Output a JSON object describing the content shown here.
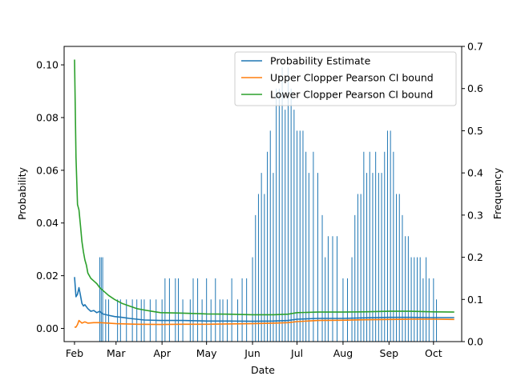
{
  "chart_data": {
    "type": "line",
    "xlabel": "Date",
    "ylabel_left": "Probability",
    "ylabel_right": "Frequency",
    "x_range": [
      "2023-01-25",
      "2023-10-20"
    ],
    "x_ticks": [
      {
        "label": "Feb",
        "date": "2023-02-01"
      },
      {
        "label": "Mar",
        "date": "2023-03-01"
      },
      {
        "label": "Apr",
        "date": "2023-04-01"
      },
      {
        "label": "May",
        "date": "2023-05-01"
      },
      {
        "label": "Jun",
        "date": "2023-06-01"
      },
      {
        "label": "Jul",
        "date": "2023-07-01"
      },
      {
        "label": "Aug",
        "date": "2023-08-01"
      },
      {
        "label": "Sep",
        "date": "2023-09-01"
      },
      {
        "label": "Oct",
        "date": "2023-10-01"
      }
    ],
    "ylim_left": [
      -0.005,
      0.107
    ],
    "y_ticks_left": [
      "0.00",
      "0.02",
      "0.04",
      "0.06",
      "0.08",
      "0.10"
    ],
    "ylim_right": [
      0.0,
      0.7
    ],
    "y_ticks_right": [
      "0.0",
      "0.1",
      "0.2",
      "0.3",
      "0.4",
      "0.5",
      "0.6",
      "0.7"
    ],
    "legend_position": "top-right",
    "series": [
      {
        "name": "Probability Estimate",
        "color": "#1f77b4",
        "points": [
          [
            "2023-02-01",
            0.0195
          ],
          [
            "2023-02-02",
            0.012
          ],
          [
            "2023-02-03",
            0.013
          ],
          [
            "2023-02-04",
            0.0155
          ],
          [
            "2023-02-05",
            0.0125
          ],
          [
            "2023-02-06",
            0.0095
          ],
          [
            "2023-02-07",
            0.0085
          ],
          [
            "2023-02-08",
            0.009
          ],
          [
            "2023-02-10",
            0.0075
          ],
          [
            "2023-02-12",
            0.0065
          ],
          [
            "2023-02-14",
            0.0068
          ],
          [
            "2023-02-16",
            0.006
          ],
          [
            "2023-02-18",
            0.0065
          ],
          [
            "2023-02-20",
            0.0055
          ],
          [
            "2023-02-24",
            0.005
          ],
          [
            "2023-02-28",
            0.0045
          ],
          [
            "2023-03-05",
            0.0042
          ],
          [
            "2023-03-10",
            0.0038
          ],
          [
            "2023-03-15",
            0.0035
          ],
          [
            "2023-03-20",
            0.0032
          ],
          [
            "2023-03-31",
            0.003
          ],
          [
            "2023-04-15",
            0.003
          ],
          [
            "2023-05-01",
            0.0028
          ],
          [
            "2023-05-15",
            0.0028
          ],
          [
            "2023-06-01",
            0.0027
          ],
          [
            "2023-06-15",
            0.0028
          ],
          [
            "2023-06-25",
            0.003
          ],
          [
            "2023-07-01",
            0.0035
          ],
          [
            "2023-07-15",
            0.0038
          ],
          [
            "2023-08-01",
            0.0038
          ],
          [
            "2023-08-15",
            0.004
          ],
          [
            "2023-09-01",
            0.0042
          ],
          [
            "2023-09-15",
            0.0042
          ],
          [
            "2023-10-01",
            0.0041
          ],
          [
            "2023-10-15",
            0.0041
          ]
        ]
      },
      {
        "name": "Upper Clopper Pearson CI bound",
        "color": "#ff7f0e",
        "points": [
          [
            "2023-02-01",
            0.0005
          ],
          [
            "2023-02-02",
            0.0005
          ],
          [
            "2023-02-03",
            0.0015
          ],
          [
            "2023-02-04",
            0.003
          ],
          [
            "2023-02-05",
            0.0025
          ],
          [
            "2023-02-06",
            0.002
          ],
          [
            "2023-02-08",
            0.0025
          ],
          [
            "2023-02-10",
            0.002
          ],
          [
            "2023-02-14",
            0.0022
          ],
          [
            "2023-02-18",
            0.0022
          ],
          [
            "2023-02-24",
            0.002
          ],
          [
            "2023-03-01",
            0.0018
          ],
          [
            "2023-03-15",
            0.0016
          ],
          [
            "2023-03-31",
            0.0015
          ],
          [
            "2023-04-15",
            0.0016
          ],
          [
            "2023-05-01",
            0.0016
          ],
          [
            "2023-05-15",
            0.0017
          ],
          [
            "2023-06-01",
            0.0018
          ],
          [
            "2023-06-15",
            0.002
          ],
          [
            "2023-06-25",
            0.0022
          ],
          [
            "2023-07-01",
            0.0026
          ],
          [
            "2023-07-15",
            0.003
          ],
          [
            "2023-08-01",
            0.0031
          ],
          [
            "2023-08-15",
            0.0033
          ],
          [
            "2023-09-01",
            0.0034
          ],
          [
            "2023-09-15",
            0.0035
          ],
          [
            "2023-10-01",
            0.0035
          ],
          [
            "2023-10-15",
            0.0034
          ]
        ]
      },
      {
        "name": "Lower Clopper Pearson CI bound",
        "color": "#2ca02c",
        "points": [
          [
            "2023-02-01",
            0.102
          ],
          [
            "2023-02-02",
            0.065
          ],
          [
            "2023-02-03",
            0.047
          ],
          [
            "2023-02-04",
            0.045
          ],
          [
            "2023-02-05",
            0.039
          ],
          [
            "2023-02-06",
            0.033
          ],
          [
            "2023-02-07",
            0.029
          ],
          [
            "2023-02-08",
            0.026
          ],
          [
            "2023-02-09",
            0.024
          ],
          [
            "2023-02-10",
            0.021
          ],
          [
            "2023-02-12",
            0.019
          ],
          [
            "2023-02-14",
            0.018
          ],
          [
            "2023-02-16",
            0.017
          ],
          [
            "2023-02-18",
            0.0155
          ],
          [
            "2023-02-20",
            0.0145
          ],
          [
            "2023-02-24",
            0.0125
          ],
          [
            "2023-02-28",
            0.011
          ],
          [
            "2023-03-05",
            0.0095
          ],
          [
            "2023-03-10",
            0.0085
          ],
          [
            "2023-03-15",
            0.0075
          ],
          [
            "2023-03-20",
            0.007
          ],
          [
            "2023-03-25",
            0.0065
          ],
          [
            "2023-03-31",
            0.006
          ],
          [
            "2023-04-15",
            0.0058
          ],
          [
            "2023-05-01",
            0.0055
          ],
          [
            "2023-05-15",
            0.0054
          ],
          [
            "2023-06-01",
            0.0052
          ],
          [
            "2023-06-15",
            0.0052
          ],
          [
            "2023-06-25",
            0.0054
          ],
          [
            "2023-07-01",
            0.006
          ],
          [
            "2023-07-15",
            0.0062
          ],
          [
            "2023-08-01",
            0.0062
          ],
          [
            "2023-08-15",
            0.0063
          ],
          [
            "2023-09-01",
            0.0065
          ],
          [
            "2023-09-15",
            0.0065
          ],
          [
            "2023-10-01",
            0.0063
          ],
          [
            "2023-10-15",
            0.0062
          ]
        ]
      }
    ],
    "frequency_bars": {
      "color": "#1f77b4",
      "axis": "right",
      "points": [
        [
          "2023-02-18",
          0.2
        ],
        [
          "2023-02-19",
          0.2
        ],
        [
          "2023-02-20",
          0.2
        ],
        [
          "2023-02-22",
          0.1
        ],
        [
          "2023-02-24",
          0.1
        ],
        [
          "2023-03-02",
          0.1
        ],
        [
          "2023-03-04",
          0.1
        ],
        [
          "2023-03-08",
          0.1
        ],
        [
          "2023-03-12",
          0.1
        ],
        [
          "2023-03-15",
          0.1
        ],
        [
          "2023-03-18",
          0.1
        ],
        [
          "2023-03-20",
          0.1
        ],
        [
          "2023-03-24",
          0.1
        ],
        [
          "2023-03-28",
          0.1
        ],
        [
          "2023-04-01",
          0.1
        ],
        [
          "2023-04-03",
          0.15
        ],
        [
          "2023-04-06",
          0.15
        ],
        [
          "2023-04-10",
          0.15
        ],
        [
          "2023-04-12",
          0.15
        ],
        [
          "2023-04-15",
          0.1
        ],
        [
          "2023-04-20",
          0.1
        ],
        [
          "2023-04-22",
          0.15
        ],
        [
          "2023-04-25",
          0.15
        ],
        [
          "2023-04-28",
          0.1
        ],
        [
          "2023-05-01",
          0.15
        ],
        [
          "2023-05-04",
          0.1
        ],
        [
          "2023-05-07",
          0.15
        ],
        [
          "2023-05-10",
          0.1
        ],
        [
          "2023-05-12",
          0.1
        ],
        [
          "2023-05-15",
          0.1
        ],
        [
          "2023-05-18",
          0.15
        ],
        [
          "2023-05-22",
          0.1
        ],
        [
          "2023-05-25",
          0.15
        ],
        [
          "2023-05-28",
          0.15
        ],
        [
          "2023-06-01",
          0.2
        ],
        [
          "2023-06-03",
          0.3
        ],
        [
          "2023-06-05",
          0.35
        ],
        [
          "2023-06-07",
          0.4
        ],
        [
          "2023-06-09",
          0.35
        ],
        [
          "2023-06-11",
          0.45
        ],
        [
          "2023-06-13",
          0.5
        ],
        [
          "2023-06-15",
          0.4
        ],
        [
          "2023-06-17",
          0.6
        ],
        [
          "2023-06-19",
          0.6
        ],
        [
          "2023-06-21",
          0.65
        ],
        [
          "2023-06-23",
          0.55
        ],
        [
          "2023-06-25",
          0.65
        ],
        [
          "2023-06-27",
          0.6
        ],
        [
          "2023-06-29",
          0.55
        ],
        [
          "2023-07-01",
          0.5
        ],
        [
          "2023-07-03",
          0.5
        ],
        [
          "2023-07-05",
          0.5
        ],
        [
          "2023-07-07",
          0.45
        ],
        [
          "2023-07-09",
          0.4
        ],
        [
          "2023-07-12",
          0.45
        ],
        [
          "2023-07-15",
          0.4
        ],
        [
          "2023-07-18",
          0.3
        ],
        [
          "2023-07-20",
          0.2
        ],
        [
          "2023-07-22",
          0.25
        ],
        [
          "2023-07-25",
          0.25
        ],
        [
          "2023-07-28",
          0.25
        ],
        [
          "2023-08-01",
          0.15
        ],
        [
          "2023-08-04",
          0.15
        ],
        [
          "2023-08-07",
          0.2
        ],
        [
          "2023-08-09",
          0.3
        ],
        [
          "2023-08-11",
          0.35
        ],
        [
          "2023-08-13",
          0.35
        ],
        [
          "2023-08-15",
          0.45
        ],
        [
          "2023-08-17",
          0.4
        ],
        [
          "2023-08-19",
          0.45
        ],
        [
          "2023-08-21",
          0.4
        ],
        [
          "2023-08-23",
          0.45
        ],
        [
          "2023-08-25",
          0.4
        ],
        [
          "2023-08-27",
          0.4
        ],
        [
          "2023-08-29",
          0.45
        ],
        [
          "2023-08-31",
          0.5
        ],
        [
          "2023-09-02",
          0.5
        ],
        [
          "2023-09-04",
          0.45
        ],
        [
          "2023-09-06",
          0.35
        ],
        [
          "2023-09-08",
          0.35
        ],
        [
          "2023-09-10",
          0.3
        ],
        [
          "2023-09-12",
          0.25
        ],
        [
          "2023-09-14",
          0.25
        ],
        [
          "2023-09-16",
          0.2
        ],
        [
          "2023-09-18",
          0.2
        ],
        [
          "2023-09-20",
          0.2
        ],
        [
          "2023-09-22",
          0.2
        ],
        [
          "2023-09-24",
          0.15
        ],
        [
          "2023-09-26",
          0.2
        ],
        [
          "2023-09-28",
          0.15
        ],
        [
          "2023-10-01",
          0.15
        ],
        [
          "2023-10-03",
          0.1
        ]
      ]
    }
  }
}
